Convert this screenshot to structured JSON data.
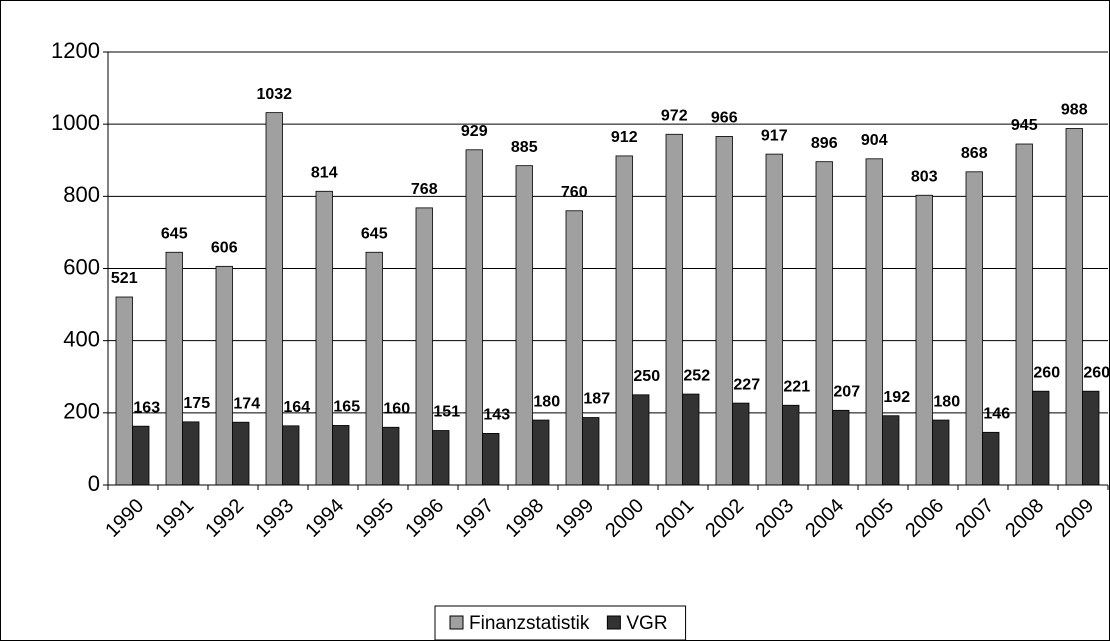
{
  "chart_data": {
    "type": "bar",
    "categories": [
      "1990",
      "1991",
      "1992",
      "1993",
      "1994",
      "1995",
      "1996",
      "1997",
      "1998",
      "1999",
      "2000",
      "2001",
      "2002",
      "2003",
      "2004",
      "2005",
      "2006",
      "2007",
      "2008",
      "2009"
    ],
    "series": [
      {
        "name": "Finanzstatistik",
        "color": "#a0a0a0",
        "values": [
          521,
          645,
          606,
          1032,
          814,
          645,
          768,
          929,
          885,
          760,
          912,
          972,
          966,
          917,
          896,
          904,
          803,
          868,
          945,
          988
        ]
      },
      {
        "name": "VGR",
        "color": "#333333",
        "values": [
          163,
          175,
          174,
          164,
          165,
          160,
          151,
          143,
          180,
          187,
          250,
          252,
          227,
          221,
          207,
          192,
          180,
          146,
          260,
          260
        ]
      }
    ],
    "ylim": [
      0,
      1200
    ],
    "yticks": [
      0,
      200,
      400,
      600,
      800,
      1000,
      1200
    ],
    "grid": true,
    "legend": "bottom"
  }
}
